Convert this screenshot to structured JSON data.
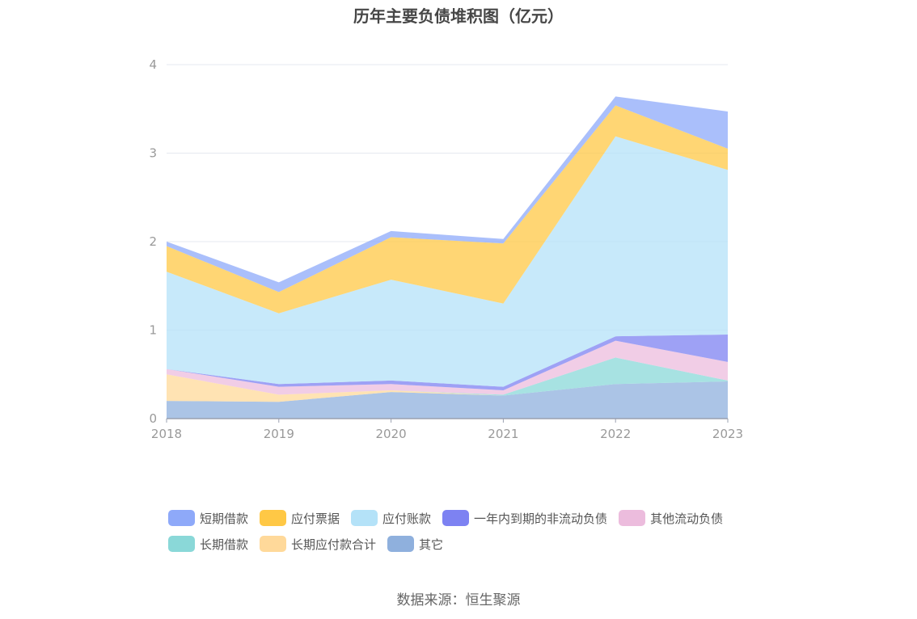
{
  "chart_data": {
    "type": "area",
    "stacked": true,
    "title": "历年主要负债堆积图（亿元）",
    "categories": [
      "2018",
      "2019",
      "2020",
      "2021",
      "2022",
      "2023"
    ],
    "y_ticks": [
      "0",
      "1",
      "2",
      "3",
      "4"
    ],
    "ylim": [
      0,
      4
    ],
    "grid": true,
    "legend_position": "bottom",
    "series": [
      {
        "name": "其它",
        "color": "#8fb0dd",
        "values": [
          0.2,
          0.19,
          0.3,
          0.26,
          0.39,
          0.42
        ]
      },
      {
        "name": "长期应付款合计",
        "color": "#ffd99a",
        "values": [
          0.3,
          0.08,
          0.02,
          0.0,
          0.0,
          0.0
        ]
      },
      {
        "name": "长期借款",
        "color": "#8ad8d8",
        "values": [
          0.0,
          0.0,
          0.0,
          0.01,
          0.3,
          0.01
        ]
      },
      {
        "name": "其他流动负债",
        "color": "#ecbcdd",
        "values": [
          0.06,
          0.09,
          0.07,
          0.05,
          0.19,
          0.21
        ]
      },
      {
        "name": "一年内到期的非流动负债",
        "color": "#7d82f2",
        "values": [
          0.0,
          0.03,
          0.04,
          0.04,
          0.05,
          0.31
        ]
      },
      {
        "name": "应付账款",
        "color": "#b4e2f8",
        "values": [
          1.1,
          0.8,
          1.14,
          0.94,
          2.26,
          1.86
        ]
      },
      {
        "name": "应付票据",
        "color": "#ffc845",
        "values": [
          0.29,
          0.24,
          0.48,
          0.68,
          0.35,
          0.24
        ]
      },
      {
        "name": "短期借款",
        "color": "#8ea9f9",
        "values": [
          0.05,
          0.11,
          0.07,
          0.05,
          0.1,
          0.42
        ]
      }
    ],
    "legend_order": [
      "短期借款",
      "应付票据",
      "应付账款",
      "一年内到期的非流动负债",
      "其他流动负债",
      "长期借款",
      "长期应付款合计",
      "其它"
    ]
  },
  "source_note": "数据来源：恒生聚源"
}
